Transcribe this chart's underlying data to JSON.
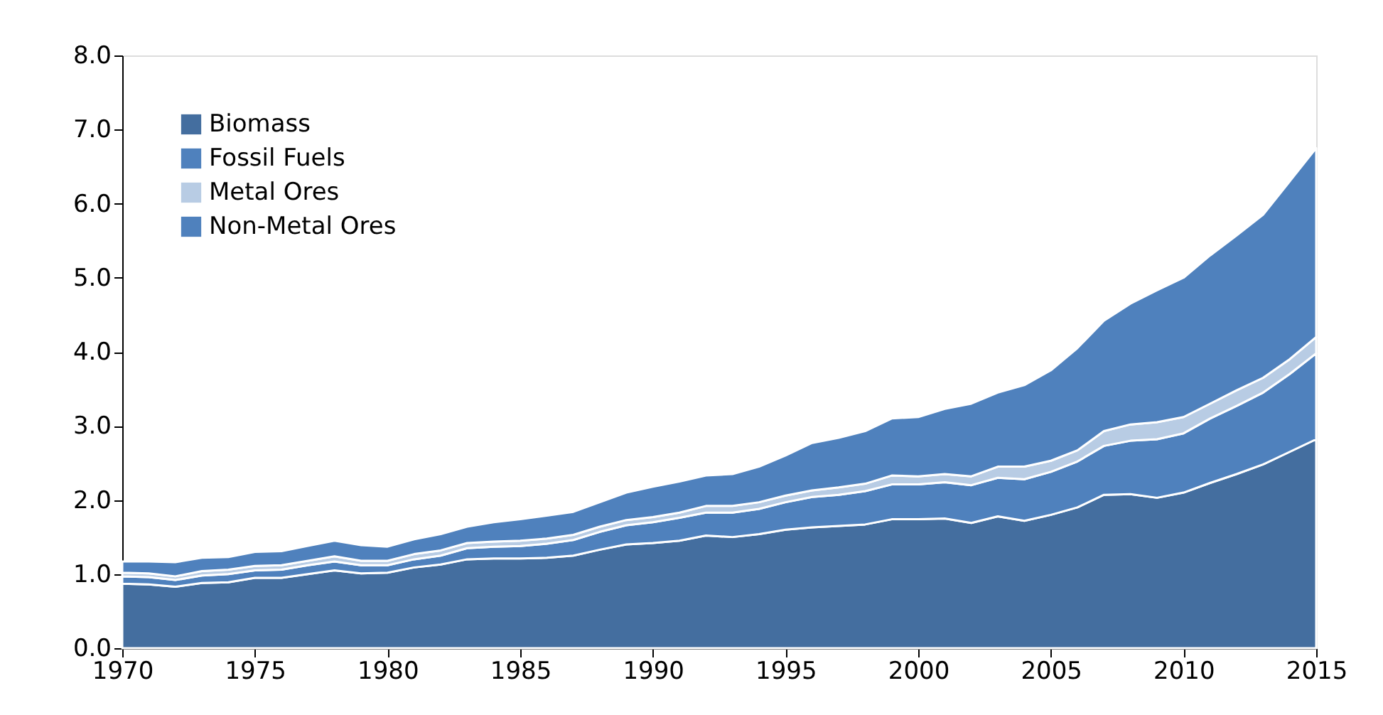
{
  "chart_data": {
    "type": "area",
    "stacked": true,
    "x": [
      1970,
      1971,
      1972,
      1973,
      1974,
      1975,
      1976,
      1977,
      1978,
      1979,
      1980,
      1981,
      1982,
      1983,
      1984,
      1985,
      1986,
      1987,
      1988,
      1989,
      1990,
      1991,
      1992,
      1993,
      1994,
      1995,
      1996,
      1997,
      1998,
      1999,
      2000,
      2001,
      2002,
      2003,
      2004,
      2005,
      2006,
      2007,
      2008,
      2009,
      2010,
      2011,
      2012,
      2013,
      2014,
      2015
    ],
    "series": [
      {
        "name": "Biomass",
        "color": "#446e9f",
        "values": [
          0.87,
          0.86,
          0.83,
          0.88,
          0.89,
          0.95,
          0.95,
          1.0,
          1.05,
          1.01,
          1.02,
          1.09,
          1.13,
          1.2,
          1.21,
          1.21,
          1.22,
          1.25,
          1.33,
          1.4,
          1.42,
          1.45,
          1.52,
          1.5,
          1.54,
          1.6,
          1.63,
          1.65,
          1.67,
          1.74,
          1.74,
          1.75,
          1.69,
          1.78,
          1.72,
          1.8,
          1.9,
          2.07,
          2.08,
          2.03,
          2.1,
          2.23,
          2.35,
          2.48,
          2.65,
          2.82
        ]
      },
      {
        "name": "Fossil Fuels",
        "color": "#4f81bd",
        "values": [
          0.1,
          0.1,
          0.09,
          0.1,
          0.11,
          0.1,
          0.11,
          0.12,
          0.12,
          0.11,
          0.1,
          0.11,
          0.12,
          0.15,
          0.16,
          0.17,
          0.19,
          0.21,
          0.24,
          0.26,
          0.28,
          0.31,
          0.31,
          0.33,
          0.34,
          0.37,
          0.41,
          0.42,
          0.45,
          0.47,
          0.47,
          0.49,
          0.51,
          0.52,
          0.56,
          0.58,
          0.62,
          0.66,
          0.72,
          0.79,
          0.8,
          0.87,
          0.92,
          0.97,
          1.05,
          1.16
        ]
      },
      {
        "name": "Metal Ores",
        "color": "#b8cce4",
        "values": [
          0.05,
          0.05,
          0.05,
          0.06,
          0.06,
          0.06,
          0.06,
          0.06,
          0.07,
          0.06,
          0.06,
          0.07,
          0.07,
          0.07,
          0.07,
          0.07,
          0.07,
          0.07,
          0.07,
          0.07,
          0.07,
          0.07,
          0.09,
          0.09,
          0.09,
          0.09,
          0.09,
          0.1,
          0.1,
          0.12,
          0.11,
          0.11,
          0.12,
          0.15,
          0.17,
          0.15,
          0.15,
          0.2,
          0.22,
          0.23,
          0.22,
          0.2,
          0.21,
          0.2,
          0.2,
          0.22
        ]
      },
      {
        "name": "Non-Metal Ores",
        "color": "#4f81bd",
        "values": [
          0.15,
          0.16,
          0.19,
          0.18,
          0.17,
          0.19,
          0.19,
          0.2,
          0.21,
          0.21,
          0.19,
          0.2,
          0.22,
          0.22,
          0.26,
          0.29,
          0.31,
          0.31,
          0.33,
          0.37,
          0.41,
          0.42,
          0.41,
          0.43,
          0.48,
          0.54,
          0.64,
          0.67,
          0.71,
          0.77,
          0.8,
          0.88,
          0.98,
          1.0,
          1.1,
          1.22,
          1.38,
          1.49,
          1.63,
          1.78,
          1.88,
          2.0,
          2.09,
          2.2,
          2.4,
          2.55
        ]
      }
    ],
    "xlim": [
      1970,
      2015
    ],
    "xticks": [
      1970,
      1975,
      1980,
      1985,
      1990,
      1995,
      2000,
      2005,
      2010,
      2015
    ],
    "ylim": [
      0,
      8
    ],
    "yticks": [
      {
        "value": 0,
        "label": "0.0"
      },
      {
        "value": 1,
        "label": "1.0"
      },
      {
        "value": 2,
        "label": "2.0"
      },
      {
        "value": 3,
        "label": "3.0"
      },
      {
        "value": 4,
        "label": "4.0"
      },
      {
        "value": 5,
        "label": "5.0"
      },
      {
        "value": 6,
        "label": "6.0"
      },
      {
        "value": 7,
        "label": "7.0"
      },
      {
        "value": 8,
        "label": "8.0"
      }
    ],
    "grid": false,
    "legend": "top left"
  }
}
